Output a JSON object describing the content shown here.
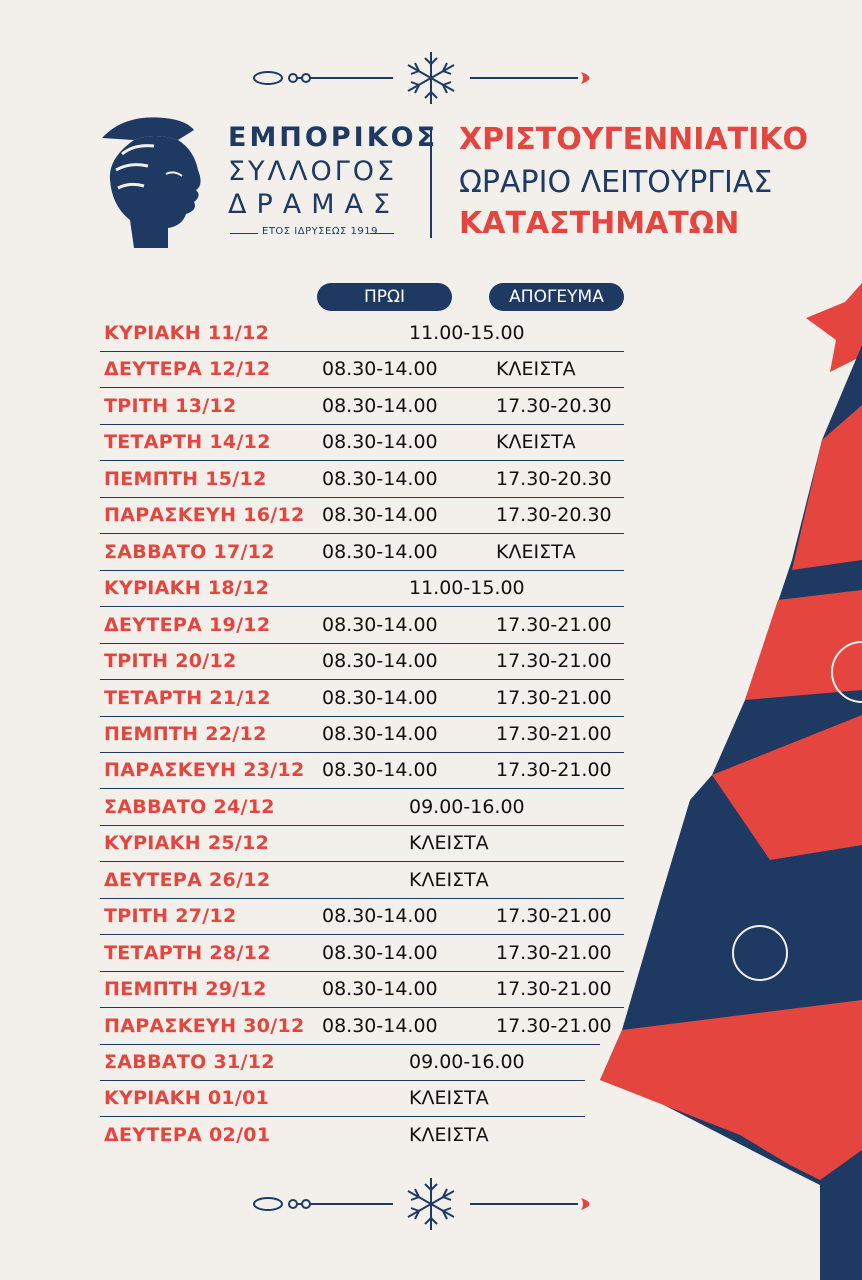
{
  "logo": {
    "line1": "ΕΜΠΟΡΙΚΟΣ",
    "line2": "ΣΥΛΛΟΓΟΣ",
    "line3": "ΔΡΑΜΑΣ",
    "founded": "ΕΤΟΣ ΙΔΡΥΣΕΩΣ 1919",
    "emblem": "hermes-head-icon"
  },
  "title": {
    "line1": "ΧΡΙΣΤΟΥΓΕΝΝΙΑΤΙΚΟ",
    "line2": "ΩΡΑΡΙΟ ΛΕΙΤΟΥΡΓΙΑΣ",
    "line3": "ΚΑΤΑΣΤΗΜΑΤΩΝ"
  },
  "columns": {
    "morning": "ΠΡΩΙ",
    "afternoon": "ΑΠΟΓΕΥΜΑ"
  },
  "schedule": [
    {
      "day": "ΚΥΡΙΑΚΗ 11/12",
      "full": "11.00-15.00"
    },
    {
      "day": "ΔΕΥΤΕΡΑ 12/12",
      "am": "08.30-14.00",
      "pm": "ΚΛΕΙΣΤΑ"
    },
    {
      "day": "ΤΡΙΤΗ 13/12",
      "am": "08.30-14.00",
      "pm": "17.30-20.30"
    },
    {
      "day": "ΤΕΤΑΡΤΗ 14/12",
      "am": "08.30-14.00",
      "pm": "ΚΛΕΙΣΤΑ"
    },
    {
      "day": "ΠΕΜΠΤΗ 15/12",
      "am": "08.30-14.00",
      "pm": "17.30-20.30"
    },
    {
      "day": "ΠΑΡΑΣΚΕΥΗ 16/12",
      "am": "08.30-14.00",
      "pm": "17.30-20.30"
    },
    {
      "day": "ΣΑΒΒΑΤΟ 17/12",
      "am": "08.30-14.00",
      "pm": "ΚΛΕΙΣΤΑ"
    },
    {
      "day": "ΚΥΡΙΑΚΗ 18/12",
      "full": "11.00-15.00"
    },
    {
      "day": "ΔΕΥΤΕΡΑ 19/12",
      "am": "08.30-14.00",
      "pm": "17.30-21.00"
    },
    {
      "day": "ΤΡΙΤΗ 20/12",
      "am": "08.30-14.00",
      "pm": "17.30-21.00"
    },
    {
      "day": "ΤΕΤΑΡΤΗ 21/12",
      "am": "08.30-14.00",
      "pm": "17.30-21.00"
    },
    {
      "day": "ΠΕΜΠΤΗ 22/12",
      "am": "08.30-14.00",
      "pm": "17.30-21.00"
    },
    {
      "day": "ΠΑΡΑΣΚΕΥΗ 23/12",
      "am": "08.30-14.00",
      "pm": "17.30-21.00"
    },
    {
      "day": "ΣΑΒΒΑΤΟ 24/12",
      "full": "09.00-16.00"
    },
    {
      "day": "ΚΥΡΙΑΚΗ 25/12",
      "full": "ΚΛΕΙΣΤΑ"
    },
    {
      "day": "ΔΕΥΤΕΡΑ 26/12",
      "full": "ΚΛΕΙΣΤΑ"
    },
    {
      "day": "ΤΡΙΤΗ 27/12",
      "am": "08.30-14.00",
      "pm": "17.30-21.00"
    },
    {
      "day": "ΤΕΤΑΡΤΗ 28/12",
      "am": "08.30-14.00",
      "pm": "17.30-21.00"
    },
    {
      "day": "ΠΕΜΠΤΗ 29/12",
      "am": "08.30-14.00",
      "pm": "17.30-21.00"
    },
    {
      "day": "ΠΑΡΑΣΚΕΥΗ 30/12",
      "am": "08.30-14.00",
      "pm": "17.30-21.00"
    },
    {
      "day": "ΣΑΒΒΑΤΟ 31/12",
      "full": "09.00-16.00"
    },
    {
      "day": "ΚΥΡΙΑΚΗ 01/01",
      "full": "ΚΛΕΙΣΤΑ"
    },
    {
      "day": "ΔΕΥΤΕΡΑ 02/01",
      "full": "ΚΛΕΙΣΤΑ"
    }
  ],
  "colors": {
    "background": "#f3efea",
    "navy": "#1e3a63",
    "red": "#e5453f"
  },
  "decorations": {
    "top_ornament": "snowflake-icon",
    "bottom_ornament": "snowflake-icon",
    "tree": "christmas-tree-graphic"
  }
}
